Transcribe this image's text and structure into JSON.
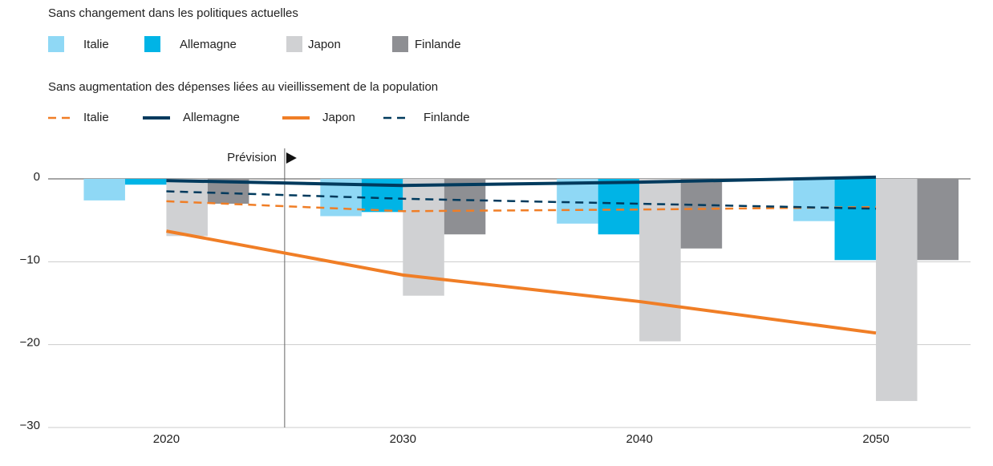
{
  "chart_data": {
    "type": "bar",
    "x": [
      2020,
      2030,
      2040,
      2050
    ],
    "xlim": [
      2015,
      2054
    ],
    "xticks": [
      2020,
      2030,
      2040,
      2050
    ],
    "ylim": [
      -30,
      0
    ],
    "yticks": [
      {
        "value": -30,
        "label": "−30"
      },
      {
        "value": -20,
        "label": "−20"
      },
      {
        "value": -10,
        "label": "−10"
      },
      0
    ],
    "grid": true,
    "annotation": {
      "text": "Prévision",
      "x": 2025
    },
    "bar_group": {
      "title": "Sans changement dans les politiques actuelles",
      "series": [
        {
          "name": "Italie",
          "color": "#8fd8f5",
          "values": [
            -2.6,
            -4.5,
            -5.4,
            -5.1
          ]
        },
        {
          "name": "Allemagne",
          "color": "#00b4e6",
          "values": [
            -0.7,
            -4.0,
            -6.7,
            -9.8
          ]
        },
        {
          "name": "Japon",
          "color": "#d0d1d3",
          "values": [
            -6.9,
            -14.1,
            -19.6,
            -26.8
          ]
        },
        {
          "name": "Finlande",
          "color": "#8e8f93",
          "values": [
            -3.0,
            -6.7,
            -8.4,
            -9.8
          ]
        }
      ]
    },
    "line_group": {
      "title": "Sans augmentation des dépenses liées au vieillissement de la population",
      "series": [
        {
          "name": "Italie",
          "color": "#f07e26",
          "dashed": true,
          "values": [
            -2.7,
            -3.9,
            -3.7,
            -3.4
          ]
        },
        {
          "name": "Allemagne",
          "color": "#003a5d",
          "dashed": false,
          "values": [
            -0.2,
            -0.8,
            -0.4,
            0.2
          ]
        },
        {
          "name": "Japon",
          "color": "#f07e26",
          "dashed": false,
          "values": [
            -6.3,
            -11.6,
            -14.8,
            -18.6
          ]
        },
        {
          "name": "Finlande",
          "color": "#003a5d",
          "dashed": true,
          "values": [
            -1.5,
            -2.4,
            -3.0,
            -3.6
          ]
        }
      ]
    }
  }
}
